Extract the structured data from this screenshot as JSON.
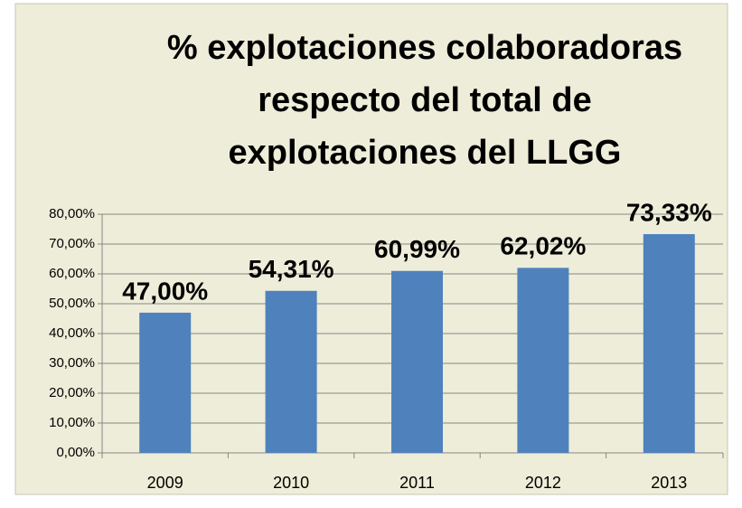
{
  "chart_data": {
    "type": "bar",
    "title": "% explotaciones colaboradoras respecto del total de explotaciones del LLGG",
    "categories": [
      "2009",
      "2010",
      "2011",
      "2012",
      "2013"
    ],
    "values": [
      47.0,
      54.31,
      60.99,
      62.02,
      73.33
    ],
    "value_labels": [
      "47,00%",
      "54,31%",
      "60,99%",
      "62,02%",
      "73,33%"
    ],
    "color": "#4f81bd",
    "ylim": [
      0,
      80
    ],
    "yticks": [
      {
        "value": 0,
        "label": "0,00%"
      },
      {
        "value": 10,
        "label": "10,00%"
      },
      {
        "value": 20,
        "label": "20,00%"
      },
      {
        "value": 30,
        "label": "30,00%"
      },
      {
        "value": 40,
        "label": "40,00%"
      },
      {
        "value": 50,
        "label": "50,00%"
      },
      {
        "value": 60,
        "label": "60,00%"
      },
      {
        "value": 70,
        "label": "70,00%"
      },
      {
        "value": 80,
        "label": "80,00%"
      }
    ],
    "grid": true
  }
}
